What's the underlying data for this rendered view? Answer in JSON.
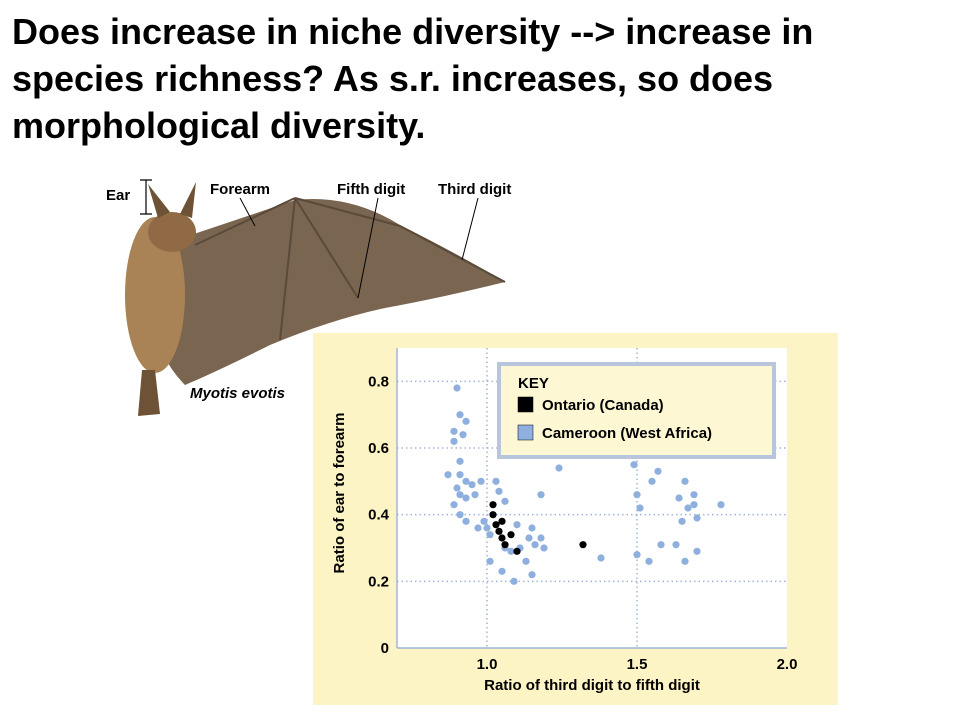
{
  "slide": {
    "title": "Does increase in niche diversity --> increase in species richness?  As s.r. increases, so does morphological diversity."
  },
  "illustration": {
    "species_name": "Myotis evotis",
    "labels": {
      "ear": "Ear",
      "forearm": "Forearm",
      "fifth_digit": "Fifth digit",
      "third_digit": "Third digit"
    }
  },
  "colors": {
    "panel_background": "#fcf4c4",
    "plot_background": "#ffffff",
    "ontario": "#000000",
    "cameroon": "#8fb0de",
    "key_box": "#fdf7d4",
    "bat_wing": "#7a6550",
    "bat_fur": "#a98256"
  },
  "chart_data": {
    "type": "scatter",
    "title": "",
    "xlabel": "Ratio of third digit to fifth digit",
    "ylabel": "Ratio of ear to forearm",
    "xlim": [
      0.7,
      2.0
    ],
    "ylim": [
      0,
      0.9
    ],
    "xticks": [
      "1.0",
      "1.5",
      "2.0"
    ],
    "xtick_values": [
      1.0,
      1.5,
      2.0
    ],
    "yticks": [
      "0",
      "0.2",
      "0.4",
      "0.6",
      "0.8"
    ],
    "ytick_values": [
      0,
      0.2,
      0.4,
      0.6,
      0.8
    ],
    "grid": "dotted",
    "legend": {
      "title": "KEY",
      "placement": "top-right"
    },
    "series": [
      {
        "name": "Ontario (Canada)",
        "color": "#000000",
        "points": [
          [
            1.02,
            0.43
          ],
          [
            1.02,
            0.4
          ],
          [
            1.03,
            0.37
          ],
          [
            1.04,
            0.35
          ],
          [
            1.05,
            0.33
          ],
          [
            1.06,
            0.31
          ],
          [
            1.05,
            0.38
          ],
          [
            1.08,
            0.34
          ],
          [
            1.1,
            0.29
          ],
          [
            1.32,
            0.31
          ]
        ]
      },
      {
        "name": "Cameroon (West Africa)",
        "color": "#8fb0de",
        "points": [
          [
            0.9,
            0.78
          ],
          [
            0.91,
            0.7
          ],
          [
            0.93,
            0.68
          ],
          [
            0.89,
            0.65
          ],
          [
            0.92,
            0.64
          ],
          [
            0.89,
            0.62
          ],
          [
            0.91,
            0.56
          ],
          [
            0.87,
            0.52
          ],
          [
            0.91,
            0.52
          ],
          [
            0.93,
            0.5
          ],
          [
            0.9,
            0.48
          ],
          [
            0.95,
            0.49
          ],
          [
            0.91,
            0.46
          ],
          [
            0.93,
            0.45
          ],
          [
            0.96,
            0.46
          ],
          [
            0.89,
            0.43
          ],
          [
            0.91,
            0.4
          ],
          [
            0.93,
            0.38
          ],
          [
            0.97,
            0.36
          ],
          [
            0.99,
            0.38
          ],
          [
            0.98,
            0.5
          ],
          [
            1.03,
            0.5
          ],
          [
            1.04,
            0.47
          ],
          [
            1.0,
            0.36
          ],
          [
            1.01,
            0.34
          ],
          [
            1.06,
            0.3
          ],
          [
            1.08,
            0.29
          ],
          [
            1.01,
            0.26
          ],
          [
            1.05,
            0.23
          ],
          [
            1.09,
            0.2
          ],
          [
            1.13,
            0.26
          ],
          [
            1.11,
            0.3
          ],
          [
            1.14,
            0.33
          ],
          [
            1.16,
            0.31
          ],
          [
            1.18,
            0.33
          ],
          [
            1.19,
            0.3
          ],
          [
            1.15,
            0.22
          ],
          [
            1.18,
            0.46
          ],
          [
            1.24,
            0.54
          ],
          [
            1.06,
            0.44
          ],
          [
            1.1,
            0.37
          ],
          [
            1.15,
            0.36
          ],
          [
            1.38,
            0.27
          ],
          [
            1.49,
            0.55
          ],
          [
            1.55,
            0.5
          ],
          [
            1.57,
            0.53
          ],
          [
            1.5,
            0.46
          ],
          [
            1.51,
            0.42
          ],
          [
            1.5,
            0.28
          ],
          [
            1.54,
            0.26
          ],
          [
            1.58,
            0.31
          ],
          [
            1.63,
            0.31
          ],
          [
            1.64,
            0.45
          ],
          [
            1.66,
            0.5
          ],
          [
            1.67,
            0.42
          ],
          [
            1.69,
            0.46
          ],
          [
            1.69,
            0.43
          ],
          [
            1.7,
            0.39
          ],
          [
            1.66,
            0.26
          ],
          [
            1.7,
            0.29
          ],
          [
            1.65,
            0.38
          ],
          [
            1.78,
            0.43
          ]
        ]
      }
    ]
  }
}
